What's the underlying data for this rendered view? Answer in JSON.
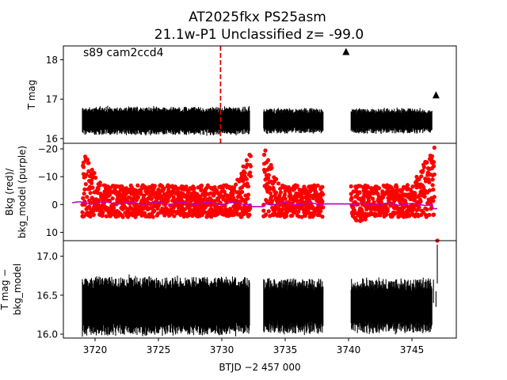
{
  "chart_data": [
    {
      "type": "scatter",
      "panel": "top",
      "title": "AT2025fkx  PS25asm",
      "subtitle": "21.1w-P1 Unclassified z= -99.0",
      "annotation": "s89 cam2ccd4",
      "ylabel": "T mag",
      "ylim": [
        18.35,
        15.88
      ],
      "yticks": [
        "16",
        "17",
        "18"
      ],
      "ytick_values": [
        16,
        17,
        18
      ],
      "xlim": [
        3717.5,
        3748.5
      ],
      "segments": [
        {
          "x0": 3719.0,
          "x1": 3732.2,
          "center": 16.45,
          "halfwidth": 0.28
        },
        {
          "x0": 3733.3,
          "x1": 3738.0,
          "center": 16.45,
          "halfwidth": 0.25
        },
        {
          "x0": 3740.2,
          "x1": 3746.6,
          "center": 16.45,
          "halfwidth": 0.25
        }
      ],
      "vline": {
        "x": 3729.9,
        "color": "#dd0000",
        "style": "dashed"
      },
      "triangles": [
        {
          "x": 3739.8,
          "y": 18.2
        },
        {
          "x": 3746.9,
          "y": 17.1
        }
      ]
    },
    {
      "type": "scatter",
      "panel": "middle",
      "ylabel_line1": "Bkg (red)/",
      "ylabel_line2": "bkg_model (purple)",
      "ylim": [
        -22,
        13
      ],
      "yticks": [
        "10",
        "0",
        "−10",
        "−20"
      ],
      "ytick_values": [
        10,
        0,
        -10,
        -20
      ],
      "xlim": [
        3717.5,
        3748.5
      ],
      "bkg_color": "#ff0000",
      "model_color": "#bb00bb",
      "outlier": {
        "x": 3747.0,
        "y": 13
      }
    },
    {
      "type": "scatter",
      "panel": "bottom",
      "ylabel_line1": "T mag −",
      "ylabel_line2": "bkg_model",
      "ylim": [
        17.2,
        15.95
      ],
      "yticks": [
        "16.0",
        "16.5",
        "17.0"
      ],
      "ytick_values": [
        16.0,
        16.5,
        17.0
      ],
      "xlim": [
        3717.5,
        3748.5
      ],
      "xlabel": "BTJD −2 457 000",
      "xticks": [
        "3720",
        "3725",
        "3730",
        "3735",
        "3740",
        "3745"
      ],
      "xtick_values": [
        3720,
        3725,
        3730,
        3735,
        3740,
        3745
      ],
      "segments": [
        {
          "x0": 3719.0,
          "x1": 3732.2,
          "center": 16.36,
          "halfwidth": 0.3
        },
        {
          "x0": 3733.3,
          "x1": 3738.0,
          "center": 16.36,
          "halfwidth": 0.28
        },
        {
          "x0": 3740.2,
          "x1": 3746.6,
          "center": 16.36,
          "halfwidth": 0.28
        }
      ]
    }
  ]
}
